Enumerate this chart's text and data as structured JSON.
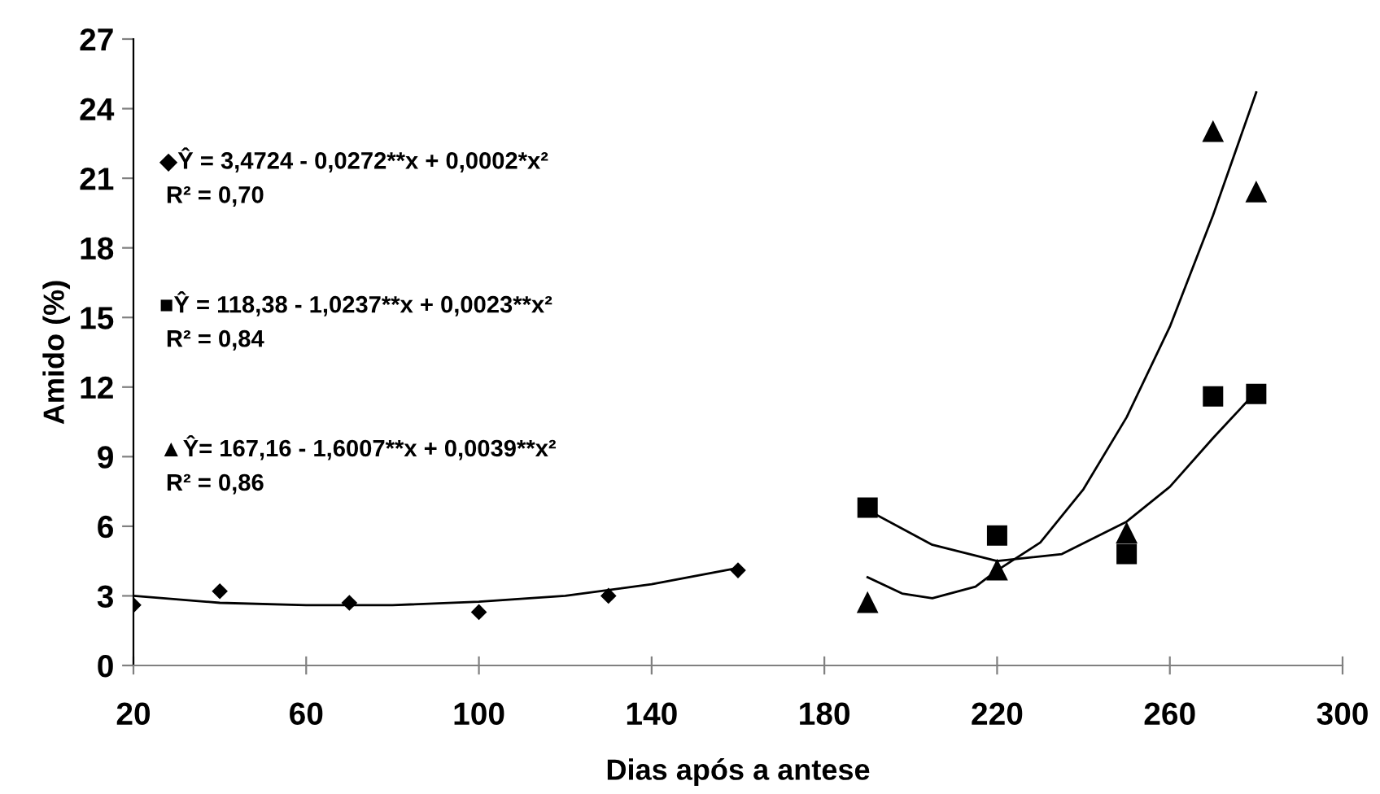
{
  "chart_data": {
    "type": "scatter",
    "xlabel": "Dias após a antese",
    "ylabel": "Amido (%)",
    "xlim": [
      20,
      300
    ],
    "xticks": [
      20,
      60,
      100,
      140,
      180,
      220,
      260,
      300
    ],
    "ylim": [
      0,
      27
    ],
    "yticks": [
      0,
      3,
      6,
      9,
      12,
      15,
      18,
      21,
      24,
      27
    ],
    "grid": false,
    "legend": false,
    "series": [
      {
        "marker": "diamond",
        "color": "#000000",
        "x": [
          20,
          40,
          70,
          100,
          130,
          160
        ],
        "values": [
          2.6,
          3.2,
          2.7,
          2.3,
          3.0,
          4.1
        ]
      },
      {
        "marker": "square",
        "color": "#000000",
        "x": [
          190,
          220,
          250,
          270,
          280
        ],
        "values": [
          6.8,
          5.6,
          4.8,
          11.6,
          11.7
        ]
      },
      {
        "marker": "triangle",
        "color": "#000000",
        "x": [
          190,
          220,
          250,
          270,
          280
        ],
        "values": [
          2.7,
          4.1,
          5.7,
          23.0,
          20.4
        ]
      },
      {
        "type": "line",
        "marker": "none",
        "color": "#000000",
        "x": [
          20,
          40,
          60,
          80,
          100,
          120,
          140,
          160
        ],
        "values": [
          3.0,
          2.7,
          2.6,
          2.6,
          2.75,
          3.0,
          3.5,
          4.2
        ]
      },
      {
        "type": "line",
        "marker": "none",
        "color": "#000000",
        "x": [
          190,
          205,
          220,
          235,
          250,
          260,
          270,
          280
        ],
        "values": [
          6.7,
          5.2,
          4.5,
          4.8,
          6.2,
          7.7,
          9.8,
          11.8
        ]
      },
      {
        "type": "line",
        "marker": "none",
        "color": "#000000",
        "x": [
          190,
          198,
          205,
          215,
          220,
          230,
          240,
          250,
          260,
          270,
          280
        ],
        "values": [
          3.8,
          3.1,
          2.9,
          3.4,
          4.1,
          5.3,
          7.6,
          10.7,
          14.6,
          19.4,
          24.7
        ]
      }
    ],
    "annotations": [
      "◆Ŷ = 3,4724 - 0,0272**x + 0,0002*x²\n R² = 0,70",
      "■Ŷ = 118,38 - 1,0237**x + 0,0023**x²\n R² = 0,84",
      "▲Ŷ= 167,16 - 1,6007**x + 0,0039**x²\n R² = 0,86"
    ]
  }
}
